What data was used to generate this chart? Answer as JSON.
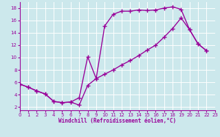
{
  "xlabel": "Windchill (Refroidissement éolien,°C)",
  "bg_color": "#cce8ec",
  "line_color": "#990099",
  "grid_color": "#ffffff",
  "line1_x": [
    0,
    1,
    2,
    3,
    4,
    5,
    6,
    7,
    8,
    9,
    10,
    11,
    12,
    13,
    14,
    15,
    16,
    17,
    18,
    19,
    20,
    21,
    22
  ],
  "line1_y": [
    5.7,
    5.2,
    4.6,
    4.1,
    2.9,
    2.7,
    2.8,
    3.5,
    10.1,
    6.6,
    15.1,
    17.0,
    17.5,
    17.5,
    17.7,
    17.6,
    17.7,
    18.0,
    18.2,
    17.8,
    14.5,
    12.2,
    11.1
  ],
  "line2_x": [
    0,
    1,
    2,
    3,
    4,
    5,
    6,
    7,
    8,
    9,
    10,
    11,
    12,
    13,
    14,
    15,
    16,
    17,
    18,
    19,
    20,
    21,
    22
  ],
  "line2_y": [
    5.7,
    5.2,
    4.6,
    4.1,
    2.9,
    2.7,
    2.8,
    2.3,
    5.5,
    6.6,
    7.3,
    8.0,
    8.8,
    9.5,
    10.3,
    11.2,
    12.0,
    13.3,
    14.7,
    16.4,
    14.5,
    12.2,
    11.1
  ],
  "xlim": [
    0,
    23
  ],
  "ylim": [
    1.5,
    19.0
  ],
  "yticks": [
    2,
    4,
    6,
    8,
    10,
    12,
    14,
    16,
    18
  ],
  "xticks": [
    0,
    1,
    2,
    3,
    4,
    5,
    6,
    7,
    8,
    9,
    10,
    11,
    12,
    13,
    14,
    15,
    16,
    17,
    18,
    19,
    20,
    21,
    22,
    23
  ],
  "xtick_labels": [
    "0",
    "1",
    "2",
    "3",
    "4",
    "5",
    "6",
    "7",
    "8",
    "9",
    "10",
    "11",
    "12",
    "13",
    "14",
    "15",
    "16",
    "17",
    "18",
    "19",
    "20",
    "21",
    "22",
    "23"
  ],
  "marker": "+",
  "markersize": 4,
  "linewidth": 1.0,
  "tick_fontsize": 5,
  "xlabel_fontsize": 5.5
}
